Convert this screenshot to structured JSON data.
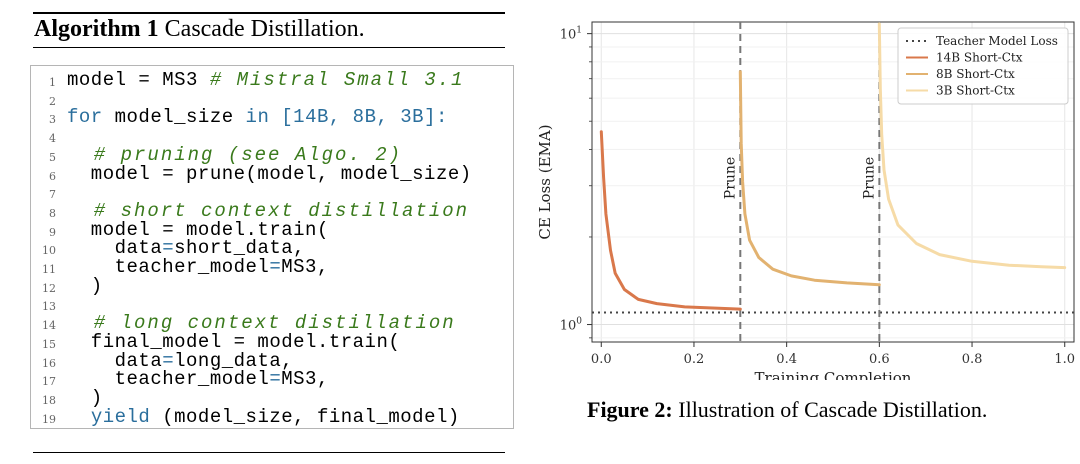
{
  "algorithm": {
    "label": "Algorithm 1",
    "title": "Cascade Distillation.",
    "lines": [
      {
        "n": "1",
        "tokens": [
          {
            "t": "model = MS3 ",
            "c": ""
          },
          {
            "t": "# Mistral Small 3.1",
            "c": "cm"
          }
        ]
      },
      {
        "n": "2",
        "tokens": []
      },
      {
        "n": "3",
        "tokens": [
          {
            "t": "for",
            "c": "kw"
          },
          {
            "t": " model_size ",
            "c": ""
          },
          {
            "t": "in",
            "c": "kw"
          },
          {
            "t": " [14B, 8B, 3B]:",
            "c": "blue"
          }
        ]
      },
      {
        "n": "4",
        "tokens": []
      },
      {
        "n": "5",
        "tokens": [
          {
            "t": "  # pruning (see Algo. 2)",
            "c": "cm"
          }
        ]
      },
      {
        "n": "6",
        "tokens": [
          {
            "t": "  model = prune(model, model_size)",
            "c": ""
          }
        ]
      },
      {
        "n": "7",
        "tokens": []
      },
      {
        "n": "8",
        "tokens": [
          {
            "t": "  # short context distillation",
            "c": "cm"
          }
        ]
      },
      {
        "n": "9",
        "tokens": [
          {
            "t": "  model = model.train(",
            "c": ""
          }
        ]
      },
      {
        "n": "10",
        "tokens": [
          {
            "t": "    data",
            "c": ""
          },
          {
            "t": "=",
            "c": "blue"
          },
          {
            "t": "short_data,",
            "c": ""
          }
        ]
      },
      {
        "n": "11",
        "tokens": [
          {
            "t": "    teacher_model",
            "c": ""
          },
          {
            "t": "=",
            "c": "blue"
          },
          {
            "t": "MS3,",
            "c": ""
          }
        ]
      },
      {
        "n": "12",
        "tokens": [
          {
            "t": "  )",
            "c": ""
          }
        ]
      },
      {
        "n": "13",
        "tokens": []
      },
      {
        "n": "14",
        "tokens": [
          {
            "t": "  # long context distillation",
            "c": "cm"
          }
        ]
      },
      {
        "n": "15",
        "tokens": [
          {
            "t": "  final_model = model.train(",
            "c": ""
          }
        ]
      },
      {
        "n": "16",
        "tokens": [
          {
            "t": "    data",
            "c": ""
          },
          {
            "t": "=",
            "c": "blue"
          },
          {
            "t": "long_data,",
            "c": ""
          }
        ]
      },
      {
        "n": "17",
        "tokens": [
          {
            "t": "    teacher_model",
            "c": ""
          },
          {
            "t": "=",
            "c": "blue"
          },
          {
            "t": "MS3,",
            "c": ""
          }
        ]
      },
      {
        "n": "18",
        "tokens": [
          {
            "t": "  )",
            "c": ""
          }
        ]
      },
      {
        "n": "19",
        "tokens": [
          {
            "t": "  ",
            "c": ""
          },
          {
            "t": "yield",
            "c": "kw"
          },
          {
            "t": " (model_size, final_model)",
            "c": ""
          }
        ]
      }
    ]
  },
  "figure": {
    "label": "Figure 2:",
    "caption": "Illustration of Cascade Distillation."
  },
  "chart_data": {
    "type": "line",
    "xlabel": "Training Completion",
    "ylabel": "CE Loss (EMA)",
    "xlim": [
      -0.02,
      1.02
    ],
    "ylim_log10": [
      -0.06,
      1.04
    ],
    "xticks": [
      {
        "v": 0.0,
        "label": "0.0"
      },
      {
        "v": 0.2,
        "label": "0.2"
      },
      {
        "v": 0.4,
        "label": "0.4"
      },
      {
        "v": 0.6,
        "label": "0.6"
      },
      {
        "v": 0.8,
        "label": "0.8"
      },
      {
        "v": 1.0,
        "label": "1.0"
      }
    ],
    "yticks": [
      {
        "v": 1,
        "base": "10",
        "exp": "0"
      },
      {
        "v": 10,
        "base": "10",
        "exp": "1"
      }
    ],
    "grid": true,
    "teacher_loss": 1.1,
    "prune_lines": [
      0.3,
      0.6
    ],
    "prune_label": "Prune",
    "series": [
      {
        "name": "14B Short-Ctx",
        "color": "#d9784b",
        "x": [
          0.0,
          0.005,
          0.01,
          0.02,
          0.03,
          0.05,
          0.08,
          0.12,
          0.18,
          0.24,
          0.3
        ],
        "y": [
          4.6,
          3.2,
          2.4,
          1.8,
          1.5,
          1.32,
          1.22,
          1.18,
          1.15,
          1.14,
          1.13
        ]
      },
      {
        "name": "8B Short-Ctx",
        "color": "#e2b270",
        "x": [
          0.3,
          0.302,
          0.305,
          0.31,
          0.32,
          0.34,
          0.37,
          0.41,
          0.46,
          0.53,
          0.6
        ],
        "y": [
          7.4,
          4.2,
          3.1,
          2.4,
          1.95,
          1.7,
          1.55,
          1.47,
          1.42,
          1.39,
          1.37
        ]
      },
      {
        "name": "3B Short-Ctx",
        "color": "#f6dba7",
        "x": [
          0.6,
          0.602,
          0.605,
          0.61,
          0.62,
          0.64,
          0.68,
          0.73,
          0.8,
          0.88,
          0.95,
          1.0
        ],
        "y": [
          10.8,
          6.5,
          4.5,
          3.4,
          2.7,
          2.2,
          1.9,
          1.74,
          1.65,
          1.6,
          1.58,
          1.57
        ]
      }
    ],
    "legend": {
      "position": "top-right",
      "teacher_label": "Teacher Model Loss"
    }
  }
}
